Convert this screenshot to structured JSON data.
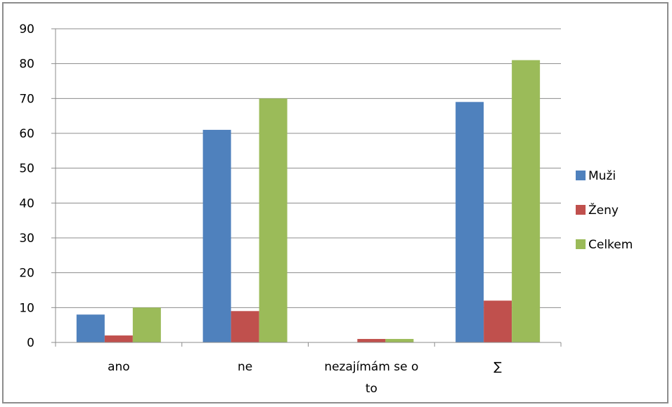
{
  "chart_data": {
    "type": "bar",
    "categories": [
      [
        "ano"
      ],
      [
        "ne"
      ],
      [
        "nezajímám se o",
        "to"
      ],
      [
        "∑"
      ]
    ],
    "series": [
      {
        "name": "Muži",
        "color": "#4f81bd",
        "values": [
          8,
          61,
          0,
          69
        ]
      },
      {
        "name": "Ženy",
        "color": "#c0504d",
        "values": [
          2,
          9,
          1,
          12
        ]
      },
      {
        "name": "Celkem",
        "color": "#9bbb59",
        "values": [
          10,
          70,
          1,
          81
        ]
      }
    ],
    "ylim": [
      0,
      90
    ],
    "yticks": [
      0,
      10,
      20,
      30,
      40,
      50,
      60,
      70,
      80,
      90
    ],
    "grid": true,
    "legend": "right",
    "title": "",
    "xlabel": "",
    "ylabel": ""
  }
}
